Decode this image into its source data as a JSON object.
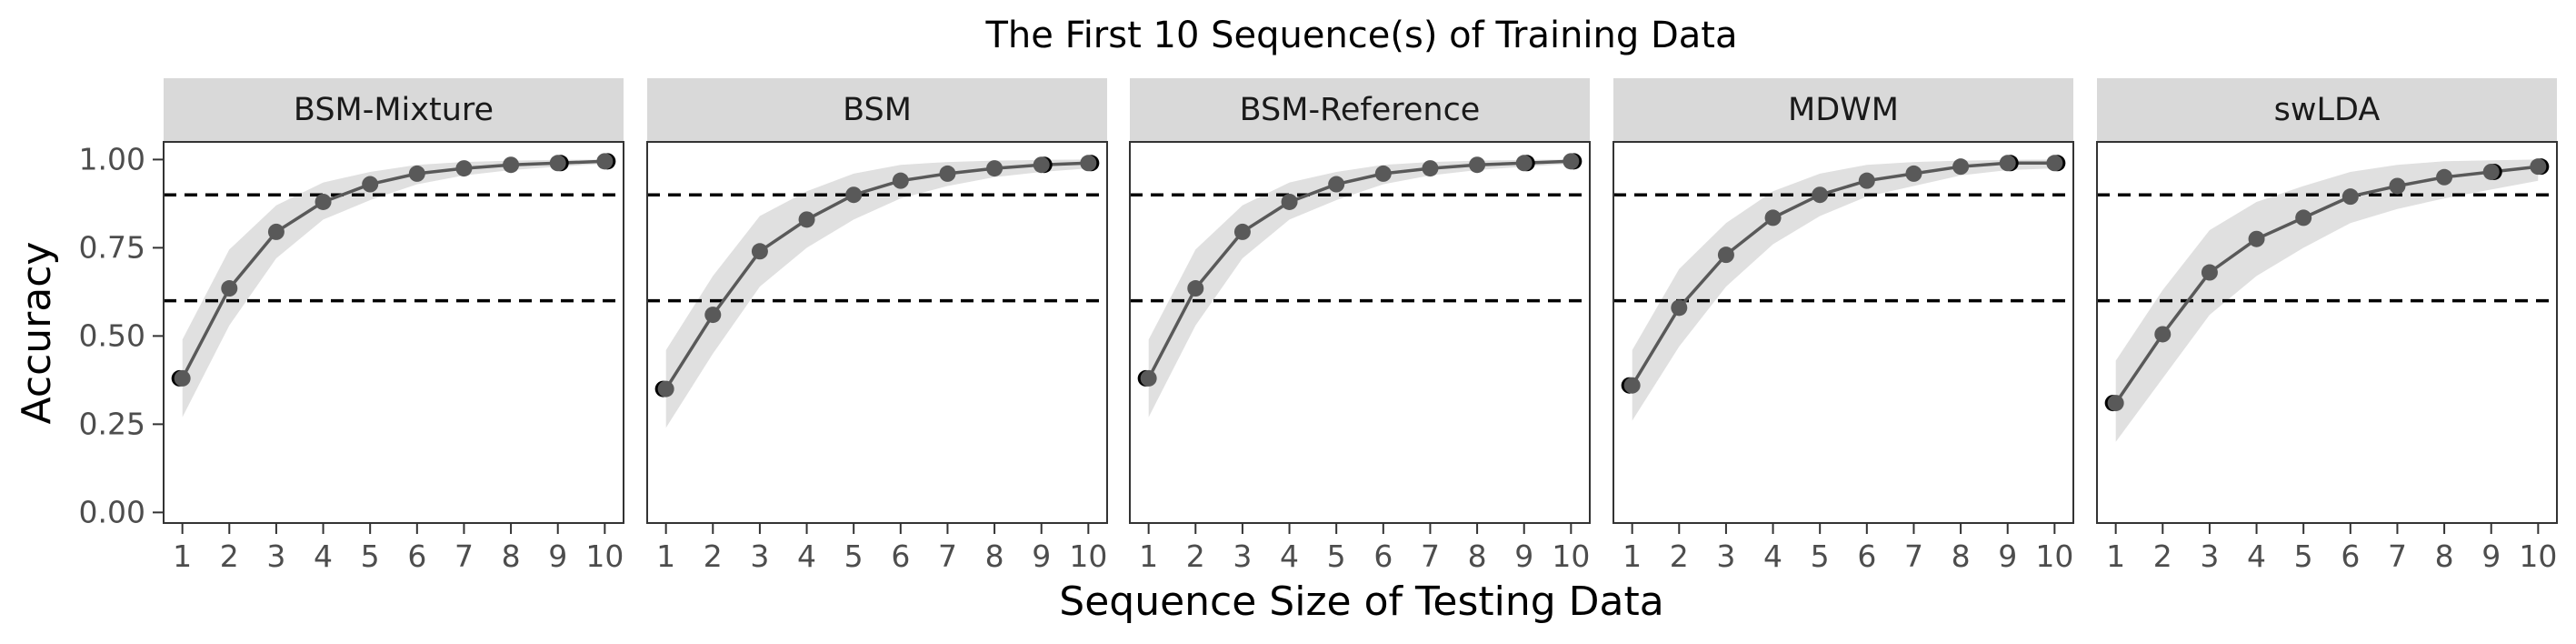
{
  "chart_data": {
    "type": "line",
    "title": "The First 10 Sequence(s) of Training Data",
    "xlabel": "Sequence Size of Testing Data",
    "ylabel": "Accuracy",
    "x": [
      1,
      2,
      3,
      4,
      5,
      6,
      7,
      8,
      9,
      10
    ],
    "x_ticks": [
      "1",
      "2",
      "3",
      "4",
      "5",
      "6",
      "7",
      "8",
      "9",
      "10"
    ],
    "y_ticks": [
      "0.00",
      "0.25",
      "0.50",
      "0.75",
      "1.00"
    ],
    "ylim": [
      -0.03,
      1.05
    ],
    "reference_lines": [
      0.9,
      0.6
    ],
    "colors": {
      "line": "#595959",
      "point": "#595959",
      "point_accent": "#000000",
      "band": "#e0e0e0",
      "strip": "#d9d9d9",
      "refline": "#000000"
    },
    "panels": [
      {
        "name": "BSM-Mixture",
        "values": [
          0.38,
          0.635,
          0.795,
          0.88,
          0.93,
          0.96,
          0.975,
          0.985,
          0.99,
          0.995
        ],
        "lower": [
          0.27,
          0.53,
          0.72,
          0.83,
          0.885,
          0.93,
          0.955,
          0.97,
          0.98,
          0.988
        ],
        "upper": [
          0.49,
          0.745,
          0.87,
          0.935,
          0.965,
          0.985,
          0.993,
          0.997,
          0.999,
          1.0
        ]
      },
      {
        "name": "BSM",
        "values": [
          0.35,
          0.56,
          0.74,
          0.83,
          0.9,
          0.94,
          0.96,
          0.975,
          0.985,
          0.99
        ],
        "lower": [
          0.24,
          0.45,
          0.64,
          0.75,
          0.83,
          0.89,
          0.925,
          0.95,
          0.965,
          0.975
        ],
        "upper": [
          0.46,
          0.67,
          0.84,
          0.91,
          0.96,
          0.985,
          0.993,
          0.997,
          0.999,
          1.0
        ]
      },
      {
        "name": "BSM-Reference",
        "values": [
          0.38,
          0.635,
          0.795,
          0.88,
          0.93,
          0.96,
          0.975,
          0.985,
          0.99,
          0.995
        ],
        "lower": [
          0.27,
          0.53,
          0.72,
          0.83,
          0.885,
          0.93,
          0.955,
          0.97,
          0.98,
          0.988
        ],
        "upper": [
          0.49,
          0.745,
          0.87,
          0.935,
          0.965,
          0.985,
          0.993,
          0.997,
          0.999,
          1.0
        ]
      },
      {
        "name": "MDWM",
        "values": [
          0.36,
          0.58,
          0.73,
          0.835,
          0.9,
          0.94,
          0.96,
          0.98,
          0.99,
          0.99
        ],
        "lower": [
          0.26,
          0.47,
          0.64,
          0.76,
          0.84,
          0.895,
          0.925,
          0.955,
          0.97,
          0.975
        ],
        "upper": [
          0.46,
          0.69,
          0.82,
          0.91,
          0.96,
          0.985,
          0.993,
          0.997,
          0.999,
          1.0
        ]
      },
      {
        "name": "swLDA",
        "values": [
          0.31,
          0.505,
          0.68,
          0.775,
          0.835,
          0.895,
          0.925,
          0.95,
          0.965,
          0.98
        ],
        "lower": [
          0.2,
          0.38,
          0.56,
          0.67,
          0.75,
          0.82,
          0.86,
          0.89,
          0.915,
          0.94
        ],
        "upper": [
          0.43,
          0.63,
          0.8,
          0.88,
          0.925,
          0.965,
          0.985,
          0.995,
          0.998,
          1.0
        ]
      }
    ]
  }
}
